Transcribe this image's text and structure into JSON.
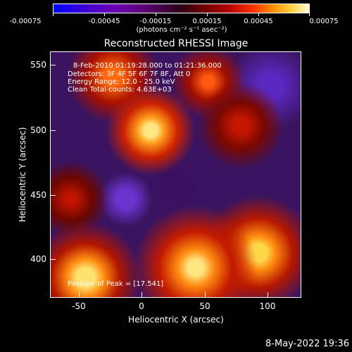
{
  "colorbar": {
    "ticks": [
      "-0.00075",
      "-0.00045",
      "-0.00015",
      "0.00015",
      "0.00045",
      "0.00075"
    ],
    "units": "(photons cm⁻² s⁻¹ asec⁻²)",
    "colormap": [
      "#0000ff",
      "#6a00b0",
      "#2a0015",
      "#b00000",
      "#ff9000",
      "#ffffd8"
    ]
  },
  "plot": {
    "title": "Reconstructed RHESSI Image",
    "xlabel": "Heliocentric X (arcsec)",
    "ylabel": "Heliocentric Y (arcsec)",
    "xticks": [
      "-50",
      "0",
      "50",
      "100"
    ],
    "yticks": [
      "550",
      "500",
      "450",
      "400"
    ],
    "info": {
      "time_range": "8-Feb-2010 01:19:28.000 to 01:21:36.000",
      "detectors": "Detectors: 3F 4F 5F 6F 7F 8F, Att 0",
      "energy": "Energy Range: 12.0 - 25.0 keV",
      "clean": "Clean     Total counts: 4.63E+03",
      "peak": "Position of Peak = [17.541]"
    }
  },
  "footer": {
    "date": "8-May-2022 19:36"
  }
}
